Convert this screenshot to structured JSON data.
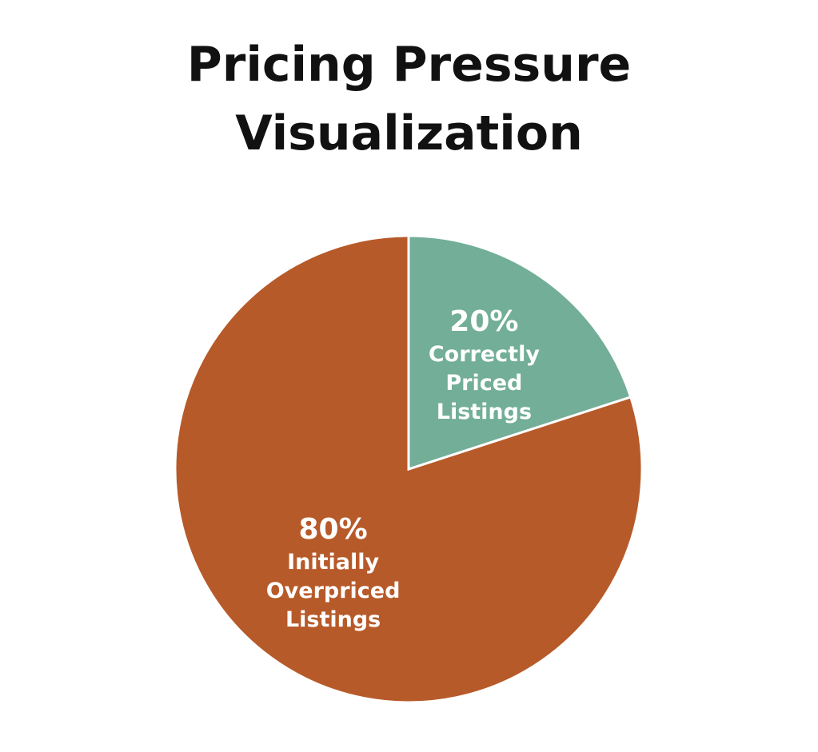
{
  "chart_data": {
    "type": "pie",
    "title": "Pricing Pressure Visualization",
    "categories": [
      "Initially Overpriced Listings",
      "Correctly Priced Listings"
    ],
    "values": [
      80,
      20
    ],
    "value_labels": [
      "80%",
      "20%"
    ],
    "colors": [
      "#b75a29",
      "#72ae98"
    ]
  }
}
